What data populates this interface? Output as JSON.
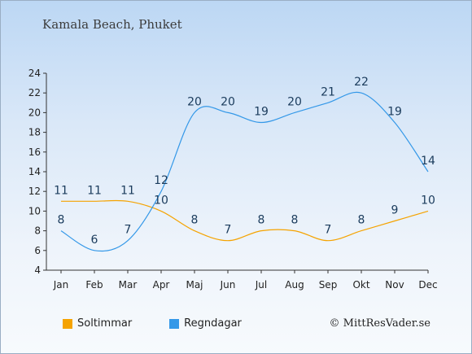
{
  "chart_data": {
    "type": "line",
    "title": "Kamala Beach, Phuket",
    "categories": [
      "Jan",
      "Feb",
      "Mar",
      "Apr",
      "Maj",
      "Jun",
      "Jul",
      "Aug",
      "Sep",
      "Okt",
      "Nov",
      "Dec"
    ],
    "series": [
      {
        "name": "Soltimmar",
        "color": "#f5a300",
        "values": [
          11,
          11,
          11,
          10,
          8,
          7,
          8,
          8,
          7,
          8,
          9,
          10
        ]
      },
      {
        "name": "Regndagar",
        "color": "#3498e8",
        "values": [
          8,
          6,
          7,
          12,
          20,
          20,
          19,
          20,
          21,
          22,
          19,
          14
        ]
      }
    ],
    "y_ticks": [
      4,
      6,
      8,
      10,
      12,
      14,
      16,
      18,
      20,
      22,
      24
    ],
    "ylim": [
      4,
      24
    ],
    "grid": false,
    "legend_position": "bottom-left"
  },
  "copyright": "© MittResVader.se"
}
